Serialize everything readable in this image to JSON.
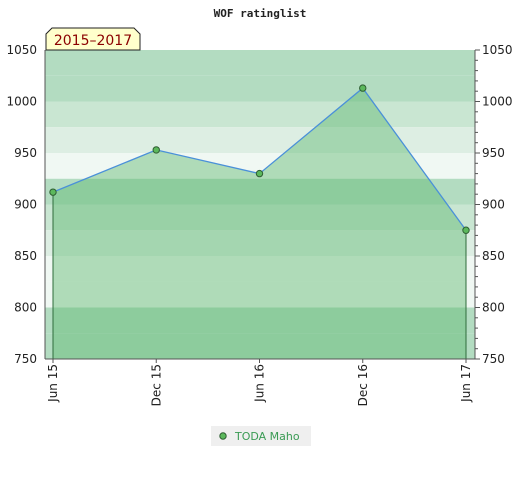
{
  "chart_data": {
    "type": "area",
    "title": "WOF ratinglist",
    "period_badge": "2015–2017",
    "categories": [
      "Jun 15",
      "Dec 15",
      "Jun 16",
      "Dec 16",
      "Jun 17"
    ],
    "series": [
      {
        "name": "TODA Maho",
        "values": [
          912,
          953,
          930,
          1013,
          875
        ]
      }
    ],
    "ylim": [
      750,
      1050
    ],
    "yticks": [
      750,
      800,
      850,
      900,
      950,
      1000,
      1050
    ],
    "grid": true,
    "legend_position": "bottom-center",
    "colors": {
      "line": "#4a90d9",
      "area": "#5fb872",
      "marker": "#5cb85c",
      "marker_stroke": "#2e5e32",
      "badge_bg": "#ffffcc",
      "band_colors": [
        "#b3dcc1",
        "#c9e6d2",
        "#ddeee3",
        "#f0f8f3"
      ]
    }
  }
}
